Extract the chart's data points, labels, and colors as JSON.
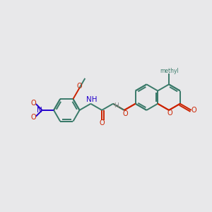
{
  "bg": "#e8e8ea",
  "bc": "#3a7a6a",
  "oc": "#cc2200",
  "nc": "#2200cc",
  "hc": "#888888",
  "lw": 1.4,
  "figsize": [
    3.0,
    3.0
  ],
  "dpi": 100,
  "xlim": [
    0,
    10
  ],
  "ylim": [
    0,
    10
  ]
}
